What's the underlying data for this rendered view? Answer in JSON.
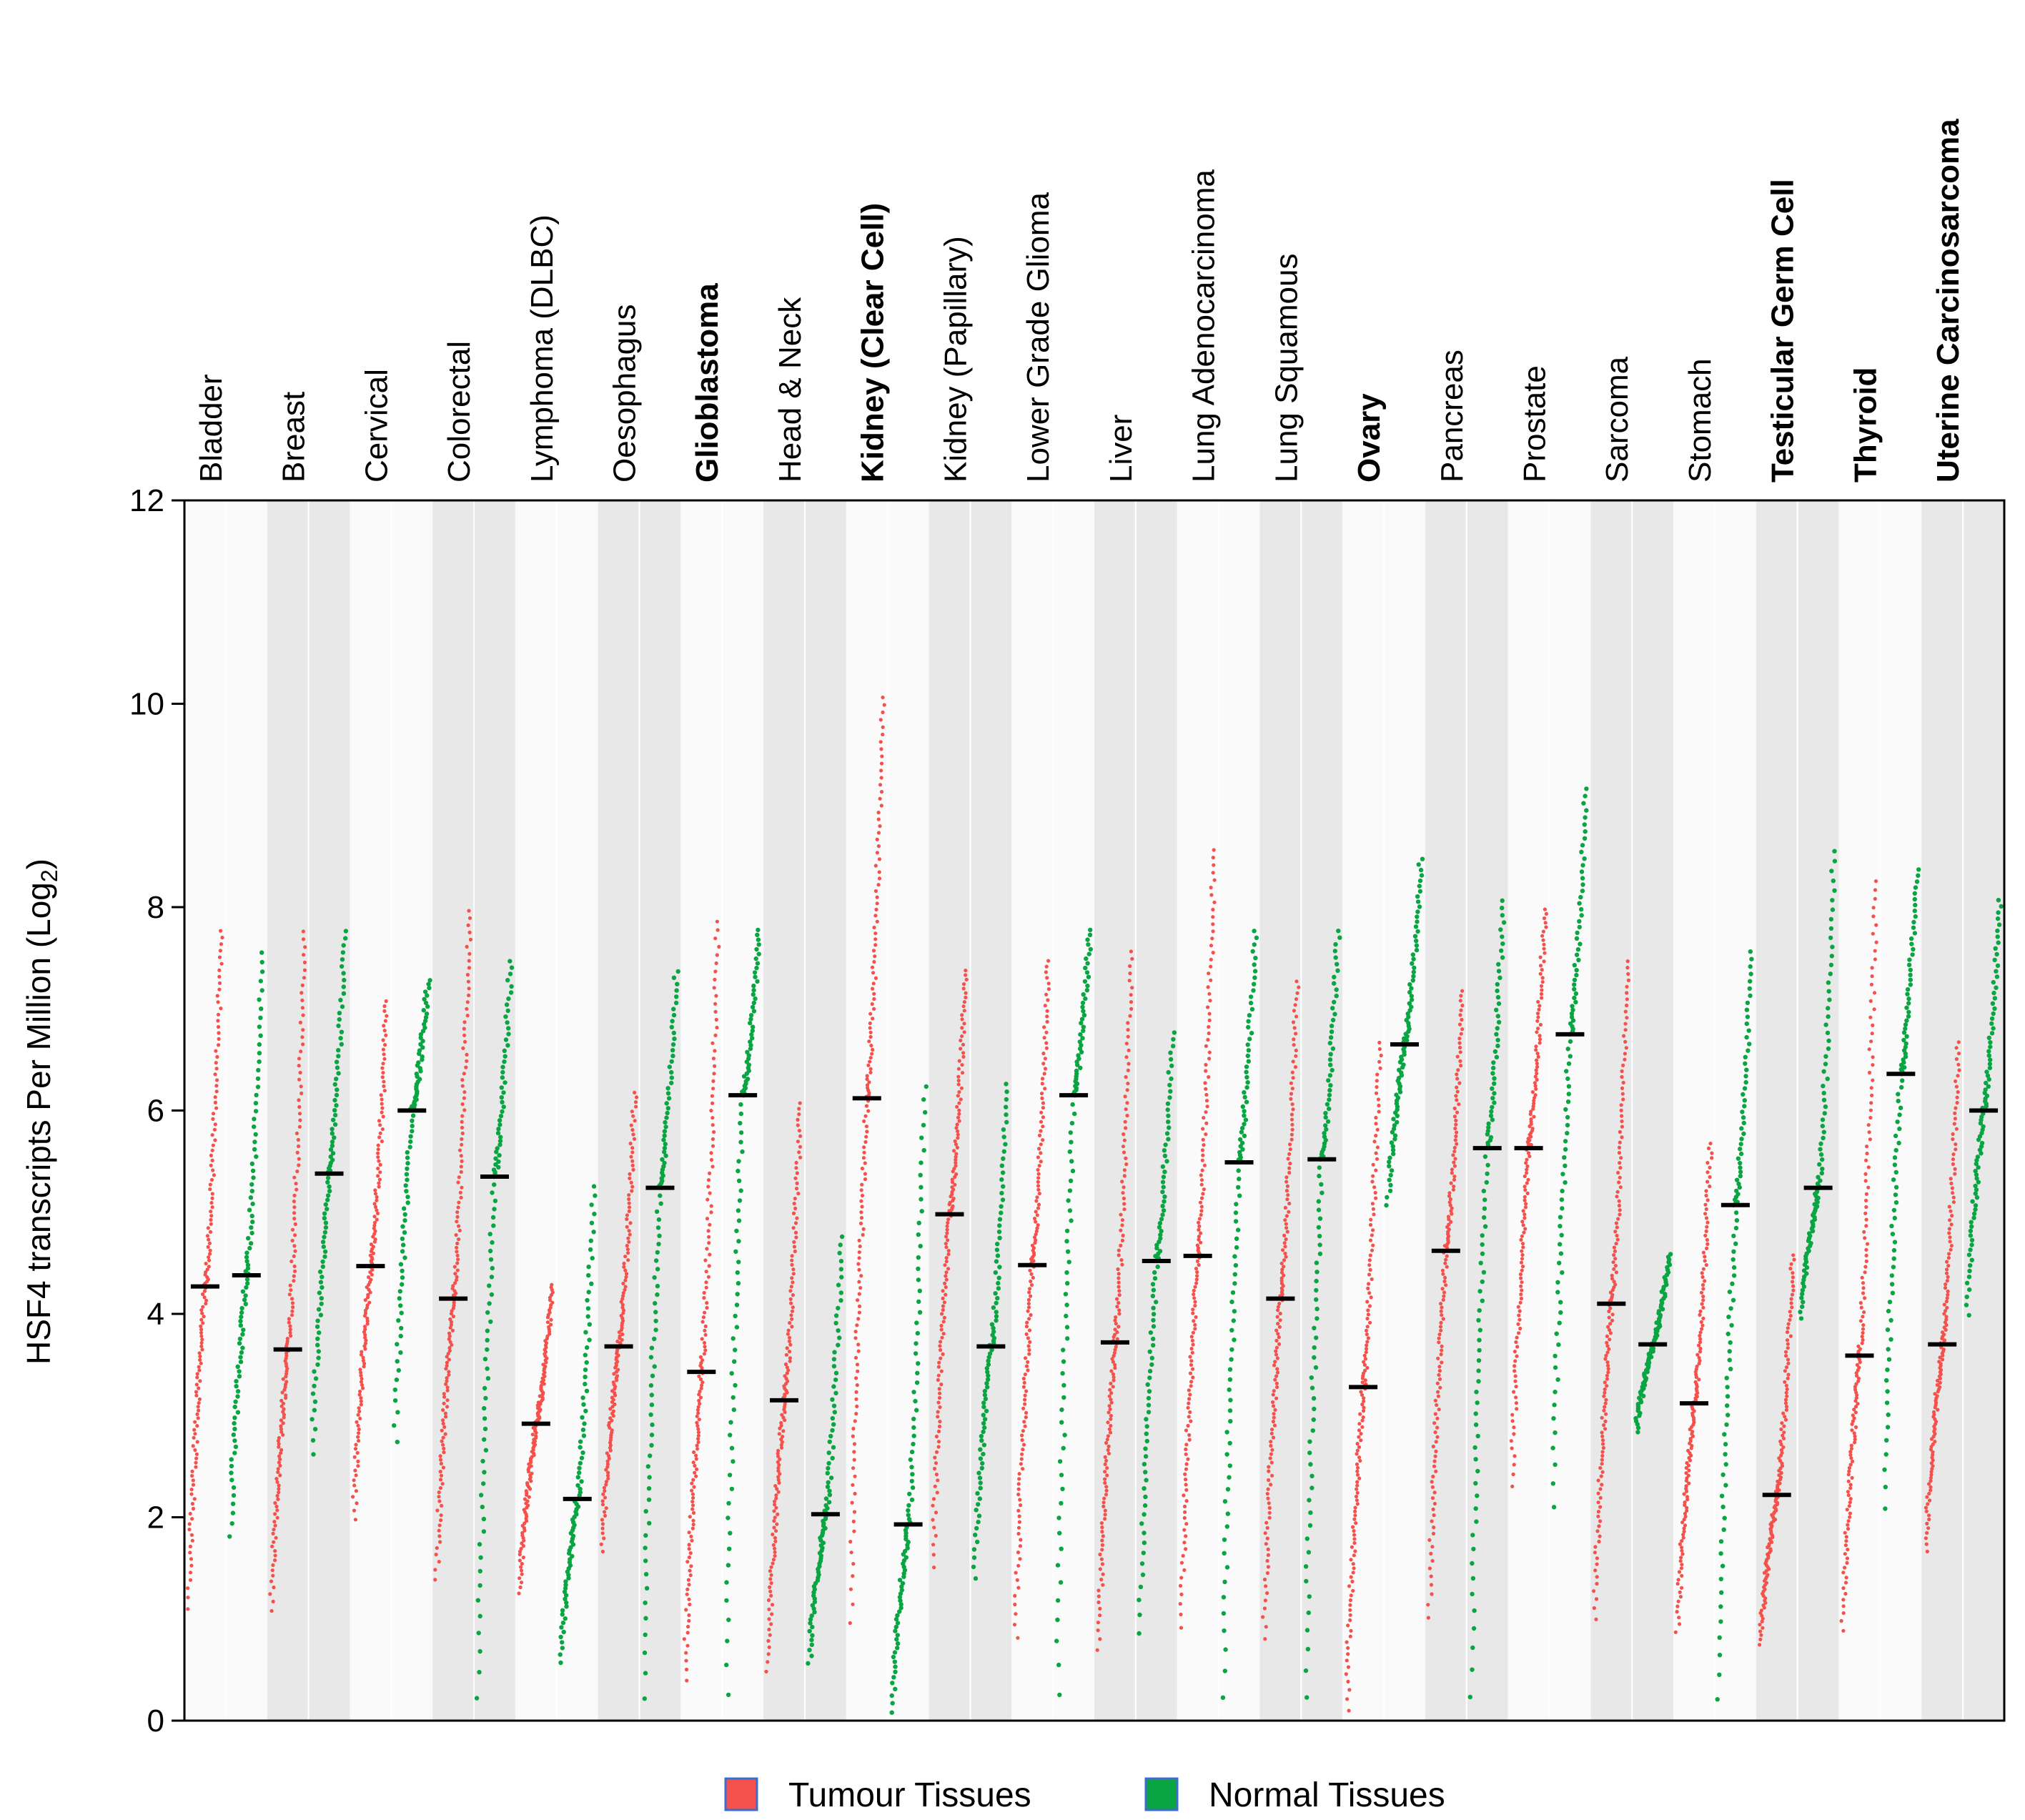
{
  "chart_data": {
    "type": "scatter",
    "ylabel": "HSF4 transcripts Per Million (Log",
    "ylabel_sub": "2",
    "ylabel_end": ")",
    "ylim": [
      0,
      12
    ],
    "yticks": [
      0,
      2,
      4,
      6,
      8,
      10,
      12
    ],
    "grid": false,
    "legend": {
      "placement": "bottom-center",
      "entries": [
        {
          "label": "Tumour Tissues",
          "color": "#f4514d"
        },
        {
          "label": "Normal Tissues",
          "color": "#0aa543"
        }
      ]
    },
    "colors": {
      "tumour": "#f4514d",
      "normal": "#0aa543",
      "band_gray": "#e8e8e8",
      "band_light": "#fafafa",
      "label_blue": "#1d86cf",
      "label_red": "#ee1c25"
    },
    "categories": [
      {
        "label": "Bladder",
        "highlight": "none",
        "tumour": {
          "median": 4.27,
          "min": 1.0,
          "max": 7.8
        },
        "normal": {
          "median": 4.38,
          "min": 1.7,
          "max": 7.6
        }
      },
      {
        "label": "Breast",
        "highlight": "none",
        "tumour": {
          "median": 3.65,
          "min": 1.0,
          "max": 7.8
        },
        "normal": {
          "median": 5.38,
          "min": 2.5,
          "max": 7.8
        }
      },
      {
        "label": "Cervical",
        "highlight": "none",
        "tumour": {
          "median": 4.47,
          "min": 1.9,
          "max": 7.1
        },
        "normal": {
          "median": 6.0,
          "min": 2.6,
          "max": 7.3
        }
      },
      {
        "label": "Colorectal",
        "highlight": "none",
        "tumour": {
          "median": 4.15,
          "min": 1.3,
          "max": 8.0
        },
        "normal": {
          "median": 5.35,
          "min": 0.0,
          "max": 7.5
        }
      },
      {
        "label": "Lymphoma (DLBC)",
        "highlight": "none",
        "tumour": {
          "median": 2.92,
          "min": 1.2,
          "max": 4.3
        },
        "normal": {
          "median": 2.18,
          "min": 0.5,
          "max": 5.3
        }
      },
      {
        "label": "Oesophagus",
        "highlight": "none",
        "tumour": {
          "median": 3.68,
          "min": 1.6,
          "max": 6.2
        },
        "normal": {
          "median": 5.24,
          "min": 0.0,
          "max": 7.4
        }
      },
      {
        "label": "Glioblastoma",
        "highlight": "blue",
        "tumour": {
          "median": 3.43,
          "min": 0.3,
          "max": 7.9
        },
        "normal": {
          "median": 6.15,
          "min": 0.0,
          "max": 7.8
        }
      },
      {
        "label": "Head & Neck",
        "highlight": "none",
        "tumour": {
          "median": 3.15,
          "min": 0.4,
          "max": 6.1
        },
        "normal": {
          "median": 2.03,
          "min": 0.5,
          "max": 4.8
        }
      },
      {
        "label": "Kidney (Clear Cell)",
        "highlight": "red",
        "tumour": {
          "median": 6.12,
          "min": 0.8,
          "max": 10.1
        },
        "normal": {
          "median": 1.93,
          "min": 0.0,
          "max": 6.3
        }
      },
      {
        "label": "Kidney (Papillary)",
        "highlight": "none",
        "tumour": {
          "median": 4.98,
          "min": 1.4,
          "max": 7.4
        },
        "normal": {
          "median": 3.68,
          "min": 1.3,
          "max": 6.3
        }
      },
      {
        "label": "Lower Grade Glioma",
        "highlight": "none",
        "tumour": {
          "median": 4.48,
          "min": 0.7,
          "max": 7.5
        },
        "normal": {
          "median": 6.15,
          "min": 0.0,
          "max": 7.8
        }
      },
      {
        "label": "Liver",
        "highlight": "none",
        "tumour": {
          "median": 3.72,
          "min": 0.6,
          "max": 7.6
        },
        "normal": {
          "median": 4.52,
          "min": 0.7,
          "max": 6.8
        }
      },
      {
        "label": "Lung Adenocarcinoma",
        "highlight": "none",
        "tumour": {
          "median": 4.57,
          "min": 0.8,
          "max": 8.6
        },
        "normal": {
          "median": 5.49,
          "min": 0.0,
          "max": 7.8
        }
      },
      {
        "label": "Lung Squamous",
        "highlight": "none",
        "tumour": {
          "median": 4.15,
          "min": 0.7,
          "max": 7.3
        },
        "normal": {
          "median": 5.52,
          "min": 0.0,
          "max": 7.8
        }
      },
      {
        "label": "Ovary",
        "highlight": "blue",
        "tumour": {
          "median": 3.28,
          "min": 0.0,
          "max": 6.7
        },
        "normal": {
          "median": 6.65,
          "min": 5.0,
          "max": 8.5
        }
      },
      {
        "label": "Pancreas",
        "highlight": "none",
        "tumour": {
          "median": 4.62,
          "min": 0.9,
          "max": 7.2
        },
        "normal": {
          "median": 5.63,
          "min": 0.0,
          "max": 8.1
        }
      },
      {
        "label": "Prostate",
        "highlight": "none",
        "tumour": {
          "median": 5.63,
          "min": 2.2,
          "max": 8.0
        },
        "normal": {
          "median": 6.75,
          "min": 1.9,
          "max": 9.2
        }
      },
      {
        "label": "Sarcoma",
        "highlight": "none",
        "tumour": {
          "median": 4.1,
          "min": 0.9,
          "max": 7.5
        },
        "normal": {
          "median": 3.7,
          "min": 2.8,
          "max": 4.6
        }
      },
      {
        "label": "Stomach",
        "highlight": "none",
        "tumour": {
          "median": 3.12,
          "min": 0.8,
          "max": 5.7
        },
        "normal": {
          "median": 5.07,
          "min": 0.0,
          "max": 7.6
        }
      },
      {
        "label": "Testicular Germ Cell",
        "highlight": "blue",
        "tumour": {
          "median": 2.22,
          "min": 0.7,
          "max": 4.6
        },
        "normal": {
          "median": 5.24,
          "min": 3.9,
          "max": 8.6
        }
      },
      {
        "label": "Thyroid",
        "highlight": "blue",
        "tumour": {
          "median": 3.59,
          "min": 0.8,
          "max": 8.3
        },
        "normal": {
          "median": 6.36,
          "min": 1.9,
          "max": 8.4
        }
      },
      {
        "label": "Uterine Carcinosarcoma",
        "highlight": "blue",
        "tumour": {
          "median": 3.7,
          "min": 1.6,
          "max": 6.7
        },
        "normal": {
          "median": 6.0,
          "min": 3.9,
          "max": 8.1
        }
      }
    ]
  }
}
